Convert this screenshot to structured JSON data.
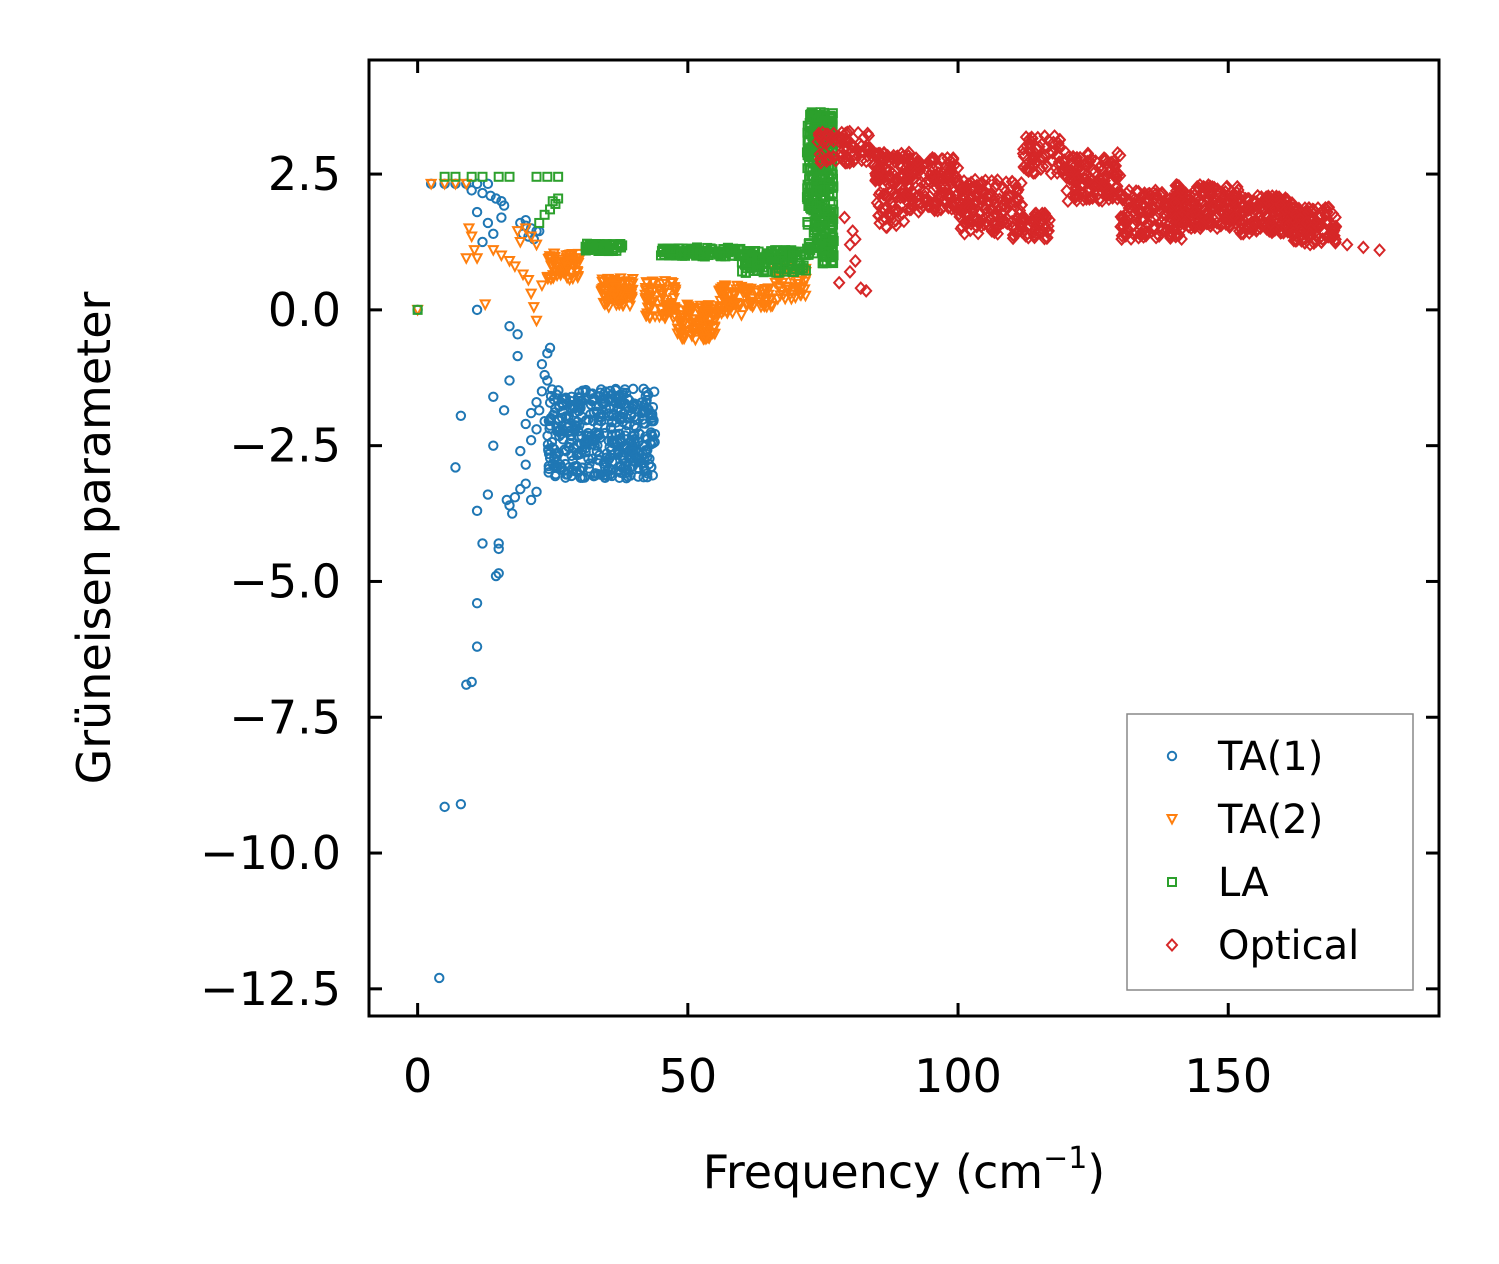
{
  "chart_data": {
    "type": "scatter",
    "title": "",
    "xlabel": "Frequency (cm",
    "xlabel_sup": "−1",
    "xlabel_end": ")",
    "ylabel": "Grüneisen parameter",
    "xlim": [
      -9,
      189
    ],
    "ylim": [
      -13.0,
      4.6
    ],
    "xticks": [
      0,
      50,
      100,
      150
    ],
    "yticks": [
      2.5,
      0.0,
      -2.5,
      -5.0,
      -7.5,
      -10.0,
      -12.5
    ],
    "xtick_labels": [
      "0",
      "50",
      "100",
      "150"
    ],
    "ytick_labels": [
      "2.5",
      "0.0",
      "−2.5",
      "−5.0",
      "−7.5",
      "−10.0",
      "−12.5"
    ],
    "legend_position": "lower-right",
    "series": [
      {
        "name": "TA(1)",
        "marker": "circle",
        "color": "#1f77b4",
        "points": [
          [
            0,
            0
          ],
          [
            2.5,
            2.32
          ],
          [
            5,
            2.32
          ],
          [
            7,
            2.32
          ],
          [
            9,
            2.32
          ],
          [
            11,
            2.32
          ],
          [
            13,
            2.32
          ],
          [
            10,
            2.2
          ],
          [
            12,
            2.15
          ],
          [
            13.5,
            2.1
          ],
          [
            14.5,
            2.05
          ],
          [
            15.5,
            2.0
          ],
          [
            16,
            1.92
          ],
          [
            11,
            1.8
          ],
          [
            13,
            1.6
          ],
          [
            14,
            1.4
          ],
          [
            12,
            1.25
          ],
          [
            15.5,
            1.7
          ],
          [
            19,
            1.6
          ],
          [
            20,
            1.55
          ],
          [
            21,
            1.5
          ],
          [
            22,
            1.45
          ],
          [
            19.5,
            1.4
          ],
          [
            20.5,
            1.35
          ],
          [
            21.5,
            1.3
          ],
          [
            22.5,
            1.45
          ],
          [
            20,
            1.65
          ],
          [
            11,
            0.0
          ],
          [
            17,
            -0.3
          ],
          [
            18.5,
            -0.45
          ],
          [
            18.5,
            -0.85
          ],
          [
            17,
            -1.3
          ],
          [
            14,
            -1.6
          ],
          [
            16,
            -1.85
          ],
          [
            8,
            -1.95
          ],
          [
            7,
            -2.9
          ],
          [
            14,
            -2.5
          ],
          [
            13,
            -3.4
          ],
          [
            11,
            -3.7
          ],
          [
            12,
            -4.3
          ],
          [
            15,
            -4.3
          ],
          [
            15,
            -4.4
          ],
          [
            14.5,
            -4.9
          ],
          [
            15,
            -4.85
          ],
          [
            11,
            -5.4
          ],
          [
            11,
            -6.2
          ],
          [
            9,
            -6.9
          ],
          [
            10,
            -6.85
          ],
          [
            5,
            -9.15
          ],
          [
            8,
            -9.1
          ],
          [
            4,
            -12.3
          ],
          [
            16.5,
            -3.5
          ],
          [
            17,
            -3.6
          ],
          [
            17.5,
            -3.75
          ],
          [
            18,
            -3.45
          ],
          [
            19,
            -3.3
          ],
          [
            20,
            -3.2
          ],
          [
            21,
            -3.5
          ],
          [
            22,
            -3.35
          ],
          [
            20,
            -2.85
          ],
          [
            19,
            -2.6
          ],
          [
            21,
            -2.4
          ],
          [
            22,
            -2.2
          ],
          [
            20,
            -2.1
          ],
          [
            21,
            -1.9
          ],
          [
            22,
            -1.7
          ],
          [
            23,
            -1.5
          ],
          [
            24,
            -1.3
          ],
          [
            23,
            -1.0
          ],
          [
            24,
            -0.8
          ],
          [
            24.5,
            -0.7
          ],
          [
            23.5,
            -1.2
          ],
          [
            22.5,
            -1.85
          ],
          [
            23.5,
            -2.05
          ]
        ],
        "clusters": [
          {
            "x": [
              24,
              44
            ],
            "y": [
              -3.1,
              -1.45
            ],
            "count": 420
          }
        ]
      },
      {
        "name": "TA(2)",
        "marker": "triangle-down",
        "color": "#ff7f0e",
        "points": [
          [
            0,
            0
          ],
          [
            2.5,
            2.32
          ],
          [
            5,
            2.32
          ],
          [
            7,
            2.32
          ],
          [
            9,
            2.32
          ],
          [
            9.5,
            1.5
          ],
          [
            10,
            1.35
          ],
          [
            10.5,
            1.1
          ],
          [
            9,
            0.95
          ],
          [
            11,
            0.95
          ],
          [
            12.5,
            0.1
          ],
          [
            14,
            1.1
          ],
          [
            15.5,
            1.0
          ],
          [
            17,
            0.9
          ],
          [
            18,
            0.8
          ],
          [
            19,
            1.25
          ],
          [
            20,
            1.5
          ],
          [
            18.5,
            1.45
          ],
          [
            19.5,
            0.65
          ],
          [
            20.5,
            0.55
          ],
          [
            21,
            0.3
          ],
          [
            21.5,
            0.05
          ],
          [
            22,
            -0.2
          ],
          [
            23,
            0.45
          ],
          [
            24,
            0.6
          ],
          [
            25,
            0.8
          ],
          [
            22,
            1.2
          ],
          [
            21,
            1.35
          ]
        ],
        "clusters": [
          {
            "x": [
              24,
              30
            ],
            "y": [
              0.55,
              1.05
            ],
            "count": 60
          },
          {
            "x": [
              34,
              40
            ],
            "y": [
              0.05,
              0.6
            ],
            "count": 80
          },
          {
            "x": [
              42,
              48
            ],
            "y": [
              -0.15,
              0.55
            ],
            "count": 70
          },
          {
            "x": [
              48,
              55
            ],
            "y": [
              -0.55,
              0.1
            ],
            "count": 90
          },
          {
            "x": [
              55,
              60
            ],
            "y": [
              -0.1,
              0.5
            ],
            "count": 50
          },
          {
            "x": [
              60,
              66
            ],
            "y": [
              0.05,
              0.4
            ],
            "count": 40
          },
          {
            "x": [
              66,
              72
            ],
            "y": [
              0.2,
              0.8
            ],
            "count": 45
          }
        ]
      },
      {
        "name": "LA",
        "marker": "square",
        "color": "#2ca02c",
        "points": [
          [
            0,
            0
          ],
          [
            5,
            2.45
          ],
          [
            7,
            2.45
          ],
          [
            10,
            2.45
          ],
          [
            12,
            2.45
          ],
          [
            15,
            2.45
          ],
          [
            17,
            2.45
          ],
          [
            22,
            2.45
          ],
          [
            24,
            2.45
          ],
          [
            26,
            2.45
          ],
          [
            25,
            2.0
          ],
          [
            25.5,
            1.95
          ],
          [
            26,
            2.05
          ],
          [
            24.5,
            1.85
          ],
          [
            23.5,
            1.75
          ],
          [
            22.5,
            1.6
          ]
        ],
        "clusters": [
          {
            "x": [
              31,
              38
            ],
            "y": [
              1.08,
              1.22
            ],
            "count": 60
          },
          {
            "x": [
              45,
              60
            ],
            "y": [
              0.98,
              1.15
            ],
            "count": 110
          },
          {
            "x": [
              60,
              72
            ],
            "y": [
              0.68,
              1.1
            ],
            "count": 110
          },
          {
            "x": [
              72,
              77
            ],
            "y": [
              0.85,
              3.65
            ],
            "count": 320
          }
        ]
      },
      {
        "name": "Optical",
        "marker": "diamond",
        "color": "#d62728",
        "points": [
          [
            78,
            0.5
          ],
          [
            80,
            0.7
          ],
          [
            81,
            0.9
          ],
          [
            82,
            0.4
          ],
          [
            83,
            0.35
          ],
          [
            80,
            1.2
          ],
          [
            81,
            1.3
          ],
          [
            80.5,
            1.45
          ],
          [
            79,
            1.7
          ],
          [
            178,
            1.1
          ],
          [
            175,
            1.15
          ],
          [
            172,
            1.2
          ]
        ],
        "clusters": [
          {
            "x": [
              74,
              84
            ],
            "y": [
              2.7,
              3.3
            ],
            "count": 80
          },
          {
            "x": [
              84,
              92
            ],
            "y": [
              2.3,
              2.9
            ],
            "count": 80
          },
          {
            "x": [
              85,
              90
            ],
            "y": [
              1.5,
              2.2
            ],
            "count": 40
          },
          {
            "x": [
              90,
              100
            ],
            "y": [
              1.8,
              2.8
            ],
            "count": 140
          },
          {
            "x": [
              100,
              112
            ],
            "y": [
              1.4,
              2.4
            ],
            "count": 160
          },
          {
            "x": [
              110,
              117
            ],
            "y": [
              1.3,
              1.8
            ],
            "count": 50
          },
          {
            "x": [
              112,
              120
            ],
            "y": [
              2.5,
              3.2
            ],
            "count": 70
          },
          {
            "x": [
              120,
              130
            ],
            "y": [
              2.0,
              2.9
            ],
            "count": 130
          },
          {
            "x": [
              130,
              142
            ],
            "y": [
              1.3,
              2.2
            ],
            "count": 170
          },
          {
            "x": [
              140,
              152
            ],
            "y": [
              1.5,
              2.3
            ],
            "count": 170
          },
          {
            "x": [
              152,
              162
            ],
            "y": [
              1.4,
              2.1
            ],
            "count": 160
          },
          {
            "x": [
              162,
              170
            ],
            "y": [
              1.2,
              1.9
            ],
            "count": 110
          }
        ]
      }
    ]
  }
}
